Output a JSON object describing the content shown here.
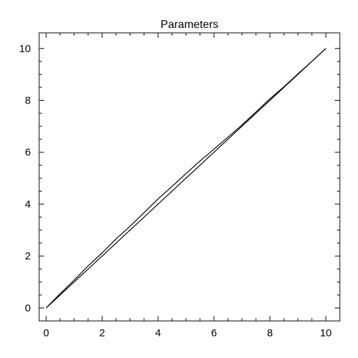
{
  "chart_data": {
    "type": "line",
    "title": "Parameters",
    "xlabel": "",
    "ylabel": "",
    "xlim": [
      -0.25,
      10.5
    ],
    "ylim": [
      -0.5,
      10.6
    ],
    "xticks": [
      0,
      2,
      4,
      6,
      8,
      10
    ],
    "yticks": [
      0,
      2,
      4,
      6,
      8,
      10
    ],
    "grid": false,
    "series": [
      {
        "color": "#000000",
        "x": [
          0,
          0.5,
          1.0,
          1.5,
          2.0,
          2.5,
          3.0,
          3.5,
          4.0,
          4.5,
          5.0,
          5.5,
          6.0,
          6.5,
          7.0,
          7.5,
          8.0,
          8.5,
          9.0,
          9.5,
          10.0
        ],
        "y": [
          0,
          0.5,
          1.0,
          1.5,
          2.0,
          2.5,
          3.0,
          3.5,
          4.0,
          4.5,
          5.0,
          5.5,
          6.0,
          6.5,
          7.0,
          7.5,
          8.0,
          8.5,
          9.0,
          9.5,
          10.0
        ]
      },
      {
        "color": "#000000",
        "x": [
          0,
          0.5,
          1.0,
          1.5,
          2.0,
          2.5,
          3.0,
          3.5,
          4.0,
          4.5,
          5.0,
          5.5,
          6.0,
          6.5,
          7.0,
          7.5,
          8.0,
          8.5,
          9.0,
          9.5,
          10.0
        ],
        "y": [
          0,
          0.55,
          1.07,
          1.62,
          2.12,
          2.66,
          3.15,
          3.67,
          4.2,
          4.68,
          5.18,
          5.66,
          6.12,
          6.58,
          7.05,
          7.55,
          8.06,
          8.52,
          9.02,
          9.5,
          10.0
        ]
      }
    ]
  }
}
